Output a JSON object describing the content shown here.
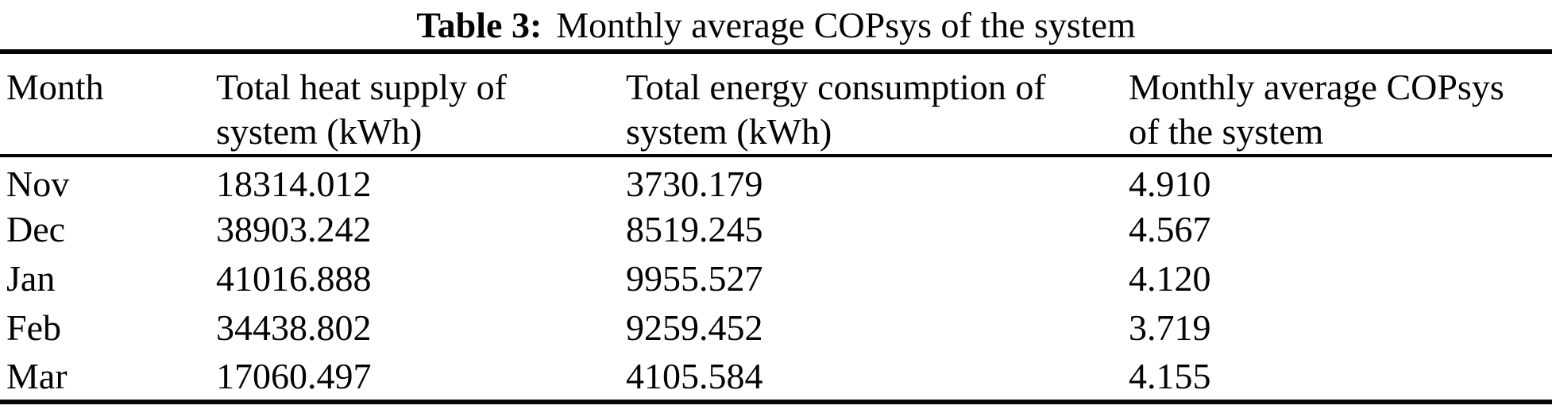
{
  "caption": {
    "label": "Table 3:",
    "text": "Monthly average COPsys of the system"
  },
  "table": {
    "columns": [
      {
        "line1": "Month",
        "line2": ""
      },
      {
        "line1": "Total heat supply of",
        "line2": "system (kWh)"
      },
      {
        "line1": "Total energy consumption of",
        "line2": "system (kWh)"
      },
      {
        "line1": "Monthly average COPsys",
        "line2": "of the system"
      }
    ],
    "rows": [
      {
        "month": "Nov",
        "heat_supply_kwh": "18314.012",
        "energy_consumption_kwh": "3730.179",
        "cop": "4.910"
      },
      {
        "month": "Dec",
        "heat_supply_kwh": "38903.242",
        "energy_consumption_kwh": "8519.245",
        "cop": "4.567"
      },
      {
        "month": "Jan",
        "heat_supply_kwh": "41016.888",
        "energy_consumption_kwh": "9955.527",
        "cop": "4.120"
      },
      {
        "month": "Feb",
        "heat_supply_kwh": "34438.802",
        "energy_consumption_kwh": "9259.452",
        "cop": "3.719"
      },
      {
        "month": "Mar",
        "heat_supply_kwh": "17060.497",
        "energy_consumption_kwh": "4105.584",
        "cop": "4.155"
      }
    ]
  },
  "colors": {
    "text": "#030303",
    "rule": "#060606",
    "background": "#ffffff"
  }
}
